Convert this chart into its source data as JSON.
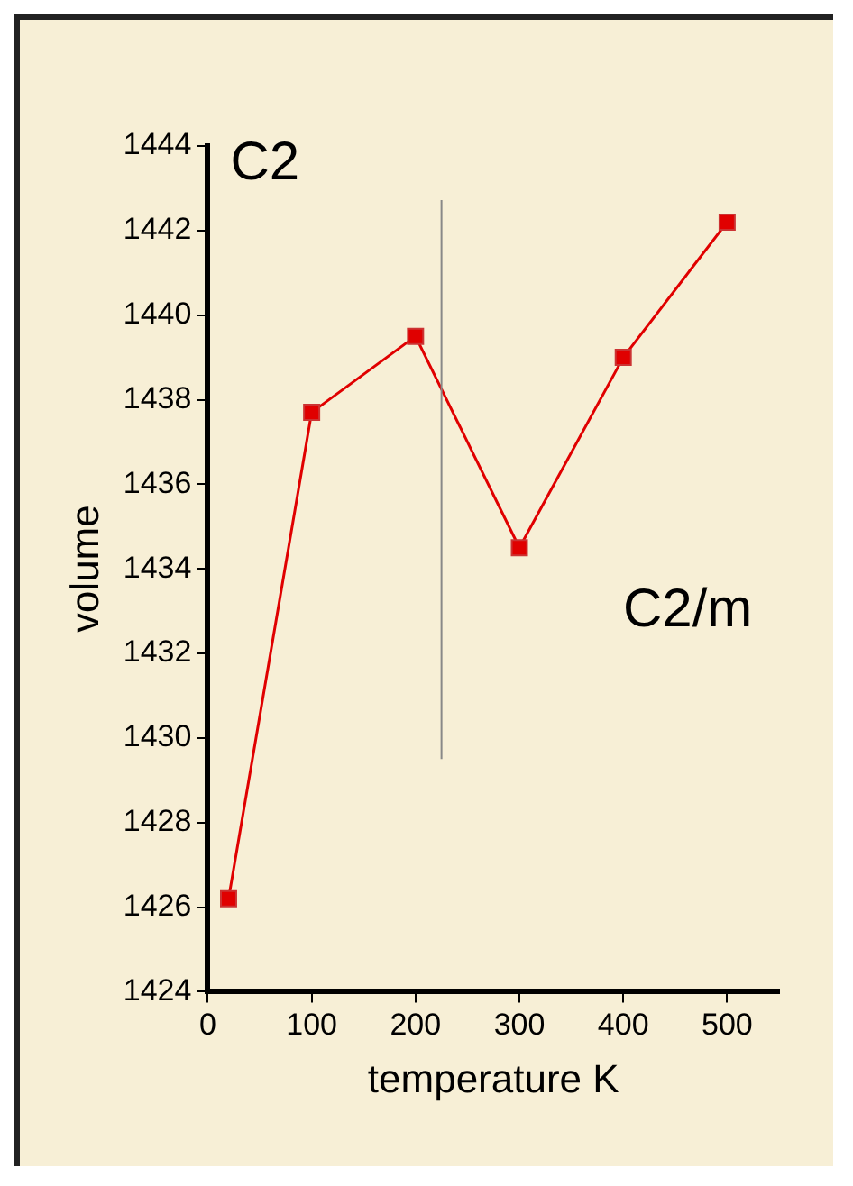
{
  "chart_data": {
    "type": "line",
    "xlabel": "temperature K",
    "ylabel": "volume",
    "x": [
      20,
      100,
      200,
      300,
      400,
      500
    ],
    "series": [
      {
        "color": "#e00000",
        "values": [
          1426.2,
          1437.7,
          1439.5,
          1434.5,
          1439.0,
          1442.2
        ]
      }
    ],
    "xlim": [
      0,
      550
    ],
    "xticks": [
      0,
      100,
      200,
      300,
      400,
      500
    ],
    "ylim": [
      1424,
      1444
    ],
    "yticks": [
      1424,
      1426,
      1428,
      1430,
      1432,
      1434,
      1436,
      1438,
      1440,
      1442,
      1444
    ],
    "ref_lines": [
      {
        "axis": "x",
        "value": 225,
        "color": "#888888"
      }
    ],
    "annotations": [
      "C2",
      "C2/m"
    ],
    "marker": "square",
    "grid": false,
    "legend": false
  }
}
